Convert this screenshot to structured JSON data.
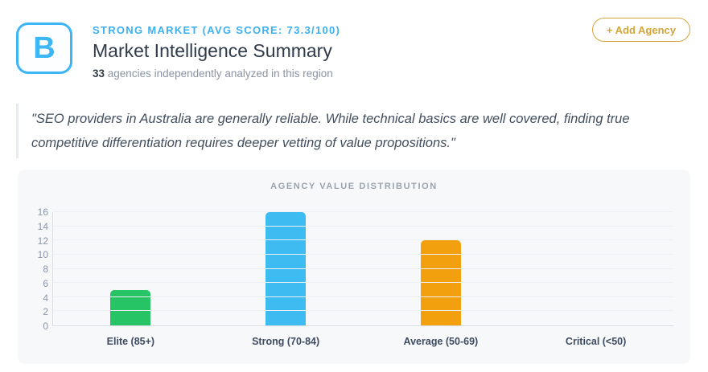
{
  "header": {
    "grade": "B",
    "market_label": "STRONG MARKET (AVG SCORE: 73.3/100)",
    "title": "Market Intelligence Summary",
    "agencies_count": "33",
    "subtitle_rest": " agencies independently analyzed in this region",
    "add_agency_label": "+ Add Agency"
  },
  "quote": "\"SEO providers in Australia are generally reliable. While technical basics are well covered, finding true competitive differentiation requires deeper vetting of value propositions.\"",
  "chart_data": {
    "type": "bar",
    "title": "AGENCY VALUE DISTRIBUTION",
    "categories": [
      "Elite (85+)",
      "Strong (70-84)",
      "Average (50-69)",
      "Critical (<50)"
    ],
    "values": [
      5,
      16,
      12,
      0
    ],
    "colors": [
      "#26c464",
      "#3ebbf0",
      "#f2a00d",
      null
    ],
    "xlabel": "",
    "ylabel": "",
    "ylim": [
      0,
      16
    ],
    "ytick_step": 2,
    "grid": true,
    "legend_position": "none"
  },
  "colors": {
    "accent_blue": "#3db6f5",
    "accent_gold": "#d4a53c",
    "bar_green": "#26c464",
    "bar_blue": "#3ebbf0",
    "bar_orange": "#f2a00d",
    "card_bg": "#f7f8fa"
  }
}
